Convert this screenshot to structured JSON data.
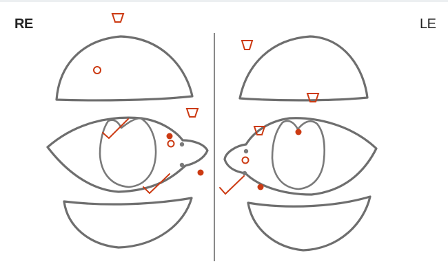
{
  "labels": {
    "right_eye": "RE",
    "left_eye": "LE"
  },
  "colors": {
    "outline": "#6e6e6e",
    "marker": "#cc3a12",
    "divider": "#6b6b6b"
  },
  "symbols": {
    "open_circle": "open-circle-marker",
    "filled_dot": "filled-dot-marker",
    "trapezoid": "inverted-trapezoid-marker",
    "check": "check-mark-marker"
  }
}
